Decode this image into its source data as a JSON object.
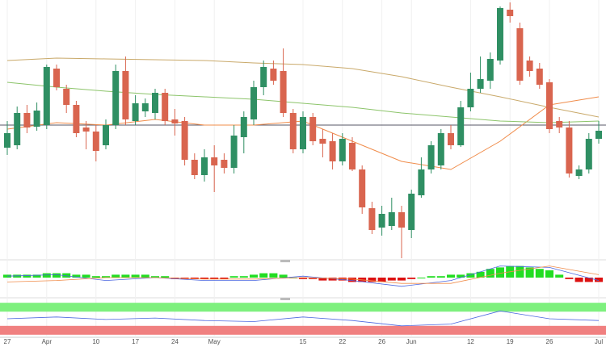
{
  "chart_data": {
    "type": "candlestick",
    "categories": [
      "27",
      null,
      null,
      null,
      "Apr",
      null,
      null,
      null,
      null,
      "10",
      null,
      null,
      null,
      "17",
      null,
      null,
      null,
      "24",
      null,
      null,
      null,
      "May",
      null,
      null,
      null,
      null,
      null,
      null,
      null,
      null,
      "15",
      null,
      null,
      null,
      "22",
      null,
      null,
      null,
      "26",
      null,
      null,
      "Jun",
      null,
      null,
      null,
      null,
      null,
      "12",
      null,
      null,
      null,
      "19",
      null,
      null,
      null,
      "26",
      null,
      null,
      null,
      null,
      "Jul"
    ],
    "open": [
      137,
      140,
      180,
      163,
      165,
      235,
      210,
      190,
      162,
      157,
      140,
      165,
      232,
      170,
      182,
      180,
      205,
      172,
      170,
      122,
      103,
      125,
      122,
      112,
      150,
      172,
      212,
      235,
      232,
      180,
      135,
      175,
      148,
      145,
      120,
      143,
      110,
      62,
      38,
      40,
      57,
      35,
      78,
      110,
      115,
      155,
      140,
      187,
      210,
      220,
      245,
      308,
      285,
      245,
      235,
      218,
      170,
      162,
      102,
      110,
      148
    ],
    "high": [
      170,
      188,
      190,
      193,
      240,
      240,
      215,
      195,
      170,
      165,
      172,
      240,
      250,
      202,
      198,
      210,
      210,
      185,
      175,
      130,
      135,
      140,
      130,
      165,
      182,
      220,
      245,
      245,
      260,
      185,
      182,
      180,
      160,
      155,
      155,
      150,
      115,
      70,
      65,
      75,
      65,
      85,
      125,
      145,
      160,
      165,
      195,
      230,
      250,
      255,
      312,
      317,
      292,
      250,
      242,
      222,
      175,
      170,
      115,
      155,
      170
    ],
    "low": [
      128,
      135,
      155,
      158,
      160,
      208,
      180,
      150,
      135,
      120,
      135,
      160,
      165,
      165,
      175,
      172,
      165,
      152,
      115,
      98,
      95,
      82,
      105,
      105,
      130,
      165,
      202,
      215,
      175,
      130,
      130,
      140,
      125,
      110,
      115,
      108,
      55,
      30,
      28,
      35,
      0,
      25,
      75,
      105,
      110,
      135,
      138,
      182,
      205,
      210,
      240,
      292,
      215,
      225,
      210,
      155,
      155,
      100,
      98,
      105,
      142
    ],
    "close": [
      155,
      180,
      162,
      183,
      237,
      212,
      190,
      155,
      157,
      133,
      165,
      232,
      172,
      192,
      192,
      205,
      170,
      167,
      122,
      103,
      125,
      115,
      112,
      152,
      175,
      212,
      237,
      220,
      180,
      135,
      175,
      145,
      142,
      120,
      148,
      110,
      63,
      35,
      55,
      57,
      38,
      80,
      110,
      140,
      155,
      140,
      187,
      210,
      222,
      247,
      310,
      300,
      220,
      232,
      215,
      160,
      162,
      105,
      110,
      148,
      158
    ],
    "up_color": "#2f8f63",
    "down_color": "#d9654f",
    "ylim": [
      0,
      320
    ],
    "hline": 165,
    "moving_averages": [
      {
        "color": "#f08c4a",
        "index": [
          0,
          5,
          10,
          15,
          20,
          25,
          30,
          35,
          40,
          45,
          50,
          55,
          60
        ],
        "values": [
          160,
          168,
          165,
          172,
          165,
          165,
          170,
          145,
          120,
          110,
          145,
          190,
          200
        ]
      },
      {
        "color": "#c9a96a",
        "index": [
          0,
          5,
          10,
          15,
          20,
          25,
          30,
          35,
          40,
          45,
          50,
          55,
          60
        ],
        "values": [
          245,
          248,
          247,
          246,
          245,
          242,
          240,
          235,
          225,
          212,
          200,
          187,
          175
        ]
      },
      {
        "color": "#8cc46a",
        "index": [
          0,
          5,
          10,
          15,
          20,
          25,
          30,
          35,
          40,
          45,
          50,
          55,
          60
        ],
        "values": [
          218,
          212,
          207,
          203,
          200,
          197,
          192,
          187,
          180,
          175,
          170,
          168,
          170
        ]
      }
    ],
    "macd": {
      "ylim": [
        -10,
        10
      ],
      "pos_color": "#22dd22",
      "neg_color": "#dd1111",
      "histogram": [
        2,
        2,
        2,
        2,
        3,
        3,
        3,
        2,
        2,
        1,
        1,
        2,
        2,
        2,
        2,
        1,
        1,
        -1,
        -1,
        -1,
        -1,
        -1,
        -1,
        1,
        1,
        2,
        3,
        3,
        2,
        0,
        -1,
        -1,
        -2,
        -2,
        -2,
        -3,
        -3,
        -3,
        -3,
        -2,
        -2,
        -1,
        0,
        1,
        1,
        2,
        2,
        3,
        4,
        6,
        7,
        8,
        8,
        7,
        6,
        5,
        2,
        -1,
        -3,
        -3,
        -3
      ],
      "lines": [
        {
          "color": "#4a66e0",
          "index": [
            0,
            5,
            10,
            15,
            20,
            25,
            30,
            35,
            40,
            45,
            50,
            55,
            60
          ],
          "values": [
            1,
            2,
            -2,
            0,
            -2,
            -2,
            1,
            -2,
            -6,
            -2,
            8,
            7,
            -2
          ]
        },
        {
          "color": "#f08c4a",
          "index": [
            0,
            5,
            10,
            15,
            20,
            25,
            30,
            35,
            40,
            45,
            50,
            55,
            60
          ],
          "values": [
            -3,
            -2,
            0,
            0,
            -1,
            -1,
            0,
            -1,
            -4,
            -4,
            3,
            8,
            2
          ]
        }
      ]
    },
    "rsi": {
      "ylim": [
        0,
        100
      ],
      "overbought": [
        70,
        95
      ],
      "oversold": [
        5,
        30
      ],
      "overbought_color": "#7ef07e",
      "oversold_color": "#f08080",
      "color": "#4a66e0",
      "index": [
        0,
        5,
        10,
        15,
        20,
        25,
        30,
        35,
        40,
        45,
        50,
        55,
        60
      ],
      "values": [
        50,
        55,
        48,
        52,
        45,
        42,
        55,
        45,
        30,
        35,
        72,
        50,
        45
      ]
    }
  }
}
